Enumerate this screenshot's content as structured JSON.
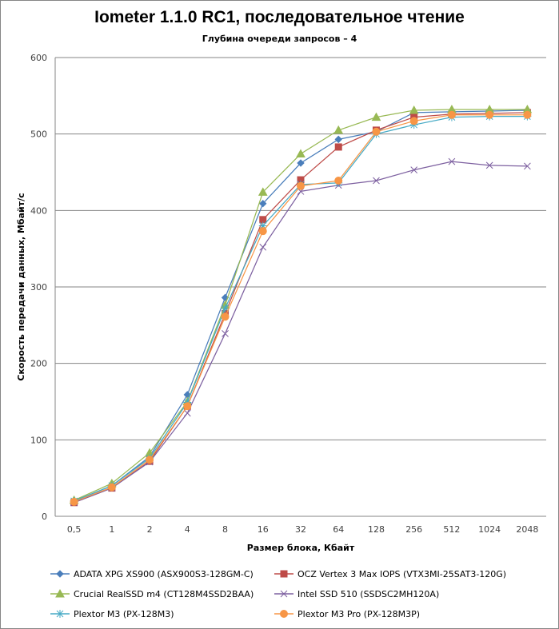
{
  "chart_data": {
    "type": "line",
    "title": "Iometer 1.1.0 RC1, последовательное чтение",
    "subtitle": "Глубина очереди запросов – 4",
    "xlabel": "Размер блока, Кбайт",
    "ylabel": "Скорость передачи данных, Мбайт/с",
    "ylim": [
      0,
      600
    ],
    "yticks": [
      0,
      100,
      200,
      300,
      400,
      500,
      600
    ],
    "grid": true,
    "legend_position": "bottom",
    "categories": [
      "0,5",
      "1",
      "2",
      "4",
      "8",
      "16",
      "32",
      "64",
      "128",
      "256",
      "512",
      "1024",
      "2048"
    ],
    "series": [
      {
        "name": "ADATA XPG XS900 (ASX900S3-128GM-C)",
        "color": "#4a7ebb",
        "marker": "diamond",
        "values": [
          20,
          40,
          78,
          159,
          286,
          409,
          462,
          493,
          503,
          528,
          529,
          530,
          531
        ]
      },
      {
        "name": "OCZ Vertex 3 Max IOPS (VTX3MI-25SAT3-120G)",
        "color": "#be4b48",
        "marker": "square",
        "values": [
          18,
          37,
          72,
          144,
          265,
          388,
          440,
          483,
          505,
          522,
          526,
          527,
          528
        ]
      },
      {
        "name": "Crucial RealSSD m4 (CT128M4SSD2BAA)",
        "color": "#98b954",
        "marker": "triangle",
        "values": [
          21,
          43,
          83,
          150,
          276,
          424,
          474,
          505,
          522,
          531,
          532,
          532,
          532
        ]
      },
      {
        "name": "Intel SSD 510 (SSDSC2MH120A)",
        "color": "#7d60a0",
        "marker": "x",
        "values": [
          18,
          37,
          71,
          135,
          239,
          352,
          425,
          433,
          439,
          453,
          464,
          459,
          458
        ]
      },
      {
        "name": "Plextor M3 (PX-128M3)",
        "color": "#46aac5",
        "marker": "star",
        "values": [
          20,
          40,
          76,
          149,
          272,
          380,
          434,
          436,
          500,
          512,
          522,
          523,
          523
        ]
      },
      {
        "name": "Plextor M3 Pro (PX-128M3P)",
        "color": "#f79646",
        "marker": "circle",
        "values": [
          19,
          38,
          74,
          144,
          261,
          373,
          432,
          439,
          503,
          517,
          525,
          525,
          525
        ]
      }
    ]
  }
}
